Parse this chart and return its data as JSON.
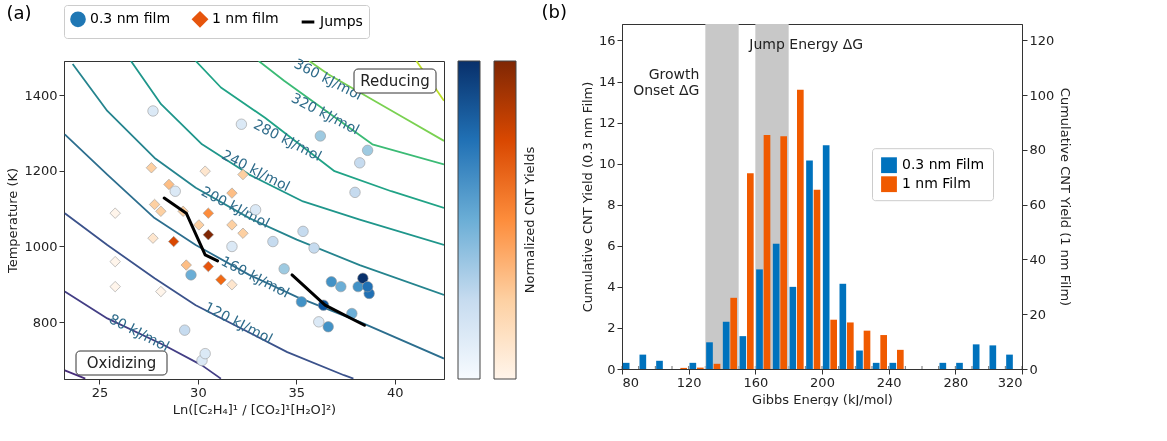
{
  "chart_data": [
    {
      "type": "scatter",
      "title": "(a)",
      "xlabel": "Ln([C₂H₄]¹ / [CO₂]¹[H₂O]²)",
      "ylabel": "Temperature (K)",
      "clabel": "Normalized CNT Yields",
      "xlim": [
        23.2,
        42.5
      ],
      "ylim": [
        650,
        1490
      ],
      "xticks": [
        25,
        30,
        35,
        40
      ],
      "yticks": [
        800,
        1000,
        1200,
        1400
      ],
      "grid": false,
      "legend": "top",
      "series": [
        {
          "type": "line",
          "color": "#472c7a",
          "x": [
            23.24,
            24.28
          ],
          "values": [
            673,
            651
          ]
        },
        {
          "type": "line",
          "color": "#433e85",
          "x": [
            23.24,
            25.4,
            28.29,
            30.21,
            31.17
          ],
          "values": [
            881,
            810,
            739,
            686,
            651
          ]
        },
        {
          "type": "line",
          "color": "#3b528b",
          "x": [
            23.24,
            25.4,
            27.8,
            29.89,
            34.54,
            37.42,
            37.9
          ],
          "values": [
            1088,
            1004,
            916,
            845,
            721,
            660,
            651
          ]
        },
        {
          "type": "line",
          "color": "#2c6e8e",
          "x": [
            23.24,
            25.4,
            27.8,
            29.89,
            32.61,
            35.02,
            38.22,
            42.5
          ],
          "values": [
            1296,
            1190,
            1075,
            1004,
            925,
            867,
            801,
            704
          ]
        },
        {
          "type": "line",
          "color": "#25848e",
          "x": [
            23.64,
            25.4,
            27.8,
            29.89,
            32.61,
            35.02,
            38.22,
            42.5
          ],
          "values": [
            1482,
            1358,
            1234,
            1155,
            1075,
            1018,
            951,
            872
          ]
        },
        {
          "type": "line",
          "color": "#1f968b",
          "x": [
            26.6,
            28.13,
            30.21,
            32.61,
            35.34,
            38.22,
            42.5
          ],
          "values": [
            1490,
            1376,
            1270,
            1190,
            1119,
            1071,
            1004
          ]
        },
        {
          "type": "line",
          "color": "#20a386",
          "x": [
            29.89,
            31.17,
            33.41,
            36.94,
            39.82,
            42.5
          ],
          "values": [
            1490,
            1420,
            1340,
            1199,
            1146,
            1102
          ]
        },
        {
          "type": "line",
          "color": "#3bbb75",
          "x": [
            33.09,
            34.38,
            38.86,
            42.5
          ],
          "values": [
            1490,
            1438,
            1270,
            1217
          ]
        },
        {
          "type": "line",
          "color": "#7ad151",
          "x": [
            35.66,
            36.62,
            40.46,
            42.5
          ],
          "values": [
            1490,
            1455,
            1340,
            1279
          ]
        },
        {
          "type": "line",
          "color": "#bddf26",
          "x": [
            41.1,
            42.5
          ],
          "values": [
            1490,
            1385
          ]
        },
        {
          "type": "scatter",
          "name": "0.3 nm film",
          "color": "#1f77b4",
          "marker": "circle",
          "x": [
            36.22,
            38.62,
            38.22,
            37.98,
            35.34,
            35.9,
            33.81,
            34.38,
            35.26,
            36.38,
            36.62,
            36.78,
            37.26,
            38.14,
            38.38,
            38.7,
            38.62,
            37.82,
            36.14,
            29.65,
            29.33,
            31.73,
            32.93,
            30.21,
            27.72,
            32.21,
            30.37,
            28.85
          ],
          "values": [
            1292,
            1254,
            1221,
            1143,
            1040,
            996,
            1013,
            941,
            854,
            845,
            788,
            907,
            894,
            894,
            916,
            876,
            894,
            823,
            801,
            925,
            779,
            1000,
            1097,
            699,
            1358,
            1323,
            717,
            1146
          ],
          "colors": [
            "#9ecae1",
            "#9ecae1",
            "#c6dbef",
            "#c6dbef",
            "#c6dbef",
            "#c6dbef",
            "#c6dbef",
            "#9ecae1",
            "#4292c6",
            "#08519c",
            "#4292c6",
            "#4292c6",
            "#6baed6",
            "#4292c6",
            "#08306b",
            "#2171b5",
            "#2171b5",
            "#6baed6",
            "#dbe9f6",
            "#6baed6",
            "#c6dbef",
            "#dbe9f6",
            "#dbe9f6",
            "#dbe9f6",
            "#dbe9f6",
            "#dbe9f6",
            "#dbe9f6",
            "#dbe9f6"
          ]
        },
        {
          "type": "scatter",
          "name": "1 nm film",
          "color": "#e6550d",
          "marker": "diamond",
          "x": [
            30.53,
            28.77,
            30.53,
            31.17,
            30.53,
            29.41,
            28.53,
            31.73,
            32.29,
            32.29,
            31.73,
            27.8,
            27.64,
            28.12,
            30.05,
            30.37,
            27.72,
            25.8,
            25.8,
            25.8,
            28.12,
            31.73,
            29.25
          ],
          "values": [
            1031,
            1013,
            947,
            912,
            1088,
            951,
            1164,
            1141,
            1190,
            1035,
            1057,
            1111,
            1208,
            1093,
            1057,
            1199,
            1022,
            1088,
            960,
            894,
            881,
            899,
            1093
          ],
          "colors": [
            "#7f2704",
            "#d94801",
            "#e6550d",
            "#f16913",
            "#fd8d3c",
            "#fdbe85",
            "#fdbe85",
            "#fdbe85",
            "#fdd0a2",
            "#fdd0a2",
            "#fdd0a2",
            "#fdd0a2",
            "#fdd0a2",
            "#fdd0a2",
            "#fdd0a2",
            "#fee6ce",
            "#fee6ce",
            "#fff5eb",
            "#fff5eb",
            "#fff5eb",
            "#fff5eb",
            "#fee6ce",
            "#fdd0a2"
          ]
        },
        {
          "type": "line",
          "name": "Jumps",
          "color": "#000000",
          "x": [
            28.29,
            29.41,
            30.37,
            31.0,
            null,
            34.78,
            36.46,
            38.46
          ],
          "values": [
            1128,
            1088,
            978,
            962,
            null,
            925,
            845,
            792
          ]
        }
      ],
      "annotations": [
        "Reducing",
        "Oxidizing",
        {
          "text": "80 kJ/mol",
          "x": 27.0,
          "y": 771
        },
        {
          "text": "120 kJ/mol",
          "x": 32.05,
          "y": 797
        },
        {
          "text": "160 kJ/mol",
          "x": 32.9,
          "y": 918
        },
        {
          "text": "200 kJ/mol",
          "x": 31.89,
          "y": 1102
        },
        {
          "text": "240 kJ/mol",
          "x": 32.93,
          "y": 1199
        },
        {
          "text": "280 kJ/mol",
          "x": 34.54,
          "y": 1279
        },
        {
          "text": "320 kJ/mol",
          "x": 36.46,
          "y": 1349
        },
        {
          "text": "360 kJ/mol",
          "x": 36.6,
          "y": 1440
        }
      ]
    },
    {
      "type": "histogram",
      "title": "(b)",
      "xlabel": "Gibbs Energy (kJ/mol)",
      "ylabel": "Cumulative CNT Yield (0.3 nm Film)",
      "y2label": "Cumulative CNT Yield (1 nm Film)",
      "xlim": [
        80,
        320
      ],
      "ylim": [
        0,
        16.8
      ],
      "y2lim": [
        0,
        126
      ],
      "xticks": [
        80,
        120,
        160,
        200,
        240,
        280,
        320
      ],
      "yticks": [
        0,
        2,
        4,
        6,
        8,
        10,
        12,
        14,
        16
      ],
      "y2ticks": [
        0,
        20,
        40,
        60,
        80,
        100,
        120
      ],
      "grid": false,
      "legend": "right",
      "bins": [
        80,
        90,
        100,
        110,
        120,
        130,
        140,
        150,
        160,
        170,
        180,
        190,
        200,
        210,
        220,
        230,
        240,
        250,
        260,
        270,
        280,
        290,
        300,
        310,
        320
      ],
      "series": [
        {
          "name": "0.3 nm Film",
          "color": "#0072bd",
          "values": [
            0.3,
            0.7,
            0.4,
            null,
            0.3,
            1.3,
            2.3,
            1.6,
            4.85,
            6.1,
            4.0,
            10.15,
            10.9,
            4.15,
            0.9,
            0.3,
            0.3,
            null,
            null,
            0.3,
            0.3,
            1.2,
            1.15,
            0.7
          ]
        },
        {
          "name": "1 nm Film",
          "color": "#f05a00",
          "axis": "y2",
          "values": [
            null,
            null,
            null,
            0.4,
            0.5,
            1.9,
            26,
            71.5,
            85.5,
            85,
            102,
            65.5,
            18,
            17,
            14,
            12.4,
            7,
            null,
            null,
            null,
            null,
            null,
            null,
            null
          ]
        }
      ],
      "bands": [
        {
          "axis": "x",
          "from": 130,
          "to": 150,
          "label": "Growth\nOnset ΔG",
          "color": "#c8c8c8"
        },
        {
          "axis": "x",
          "from": 160,
          "to": 180,
          "label": "Jump Energy ΔG",
          "color": "#c8c8c8"
        }
      ]
    }
  ]
}
